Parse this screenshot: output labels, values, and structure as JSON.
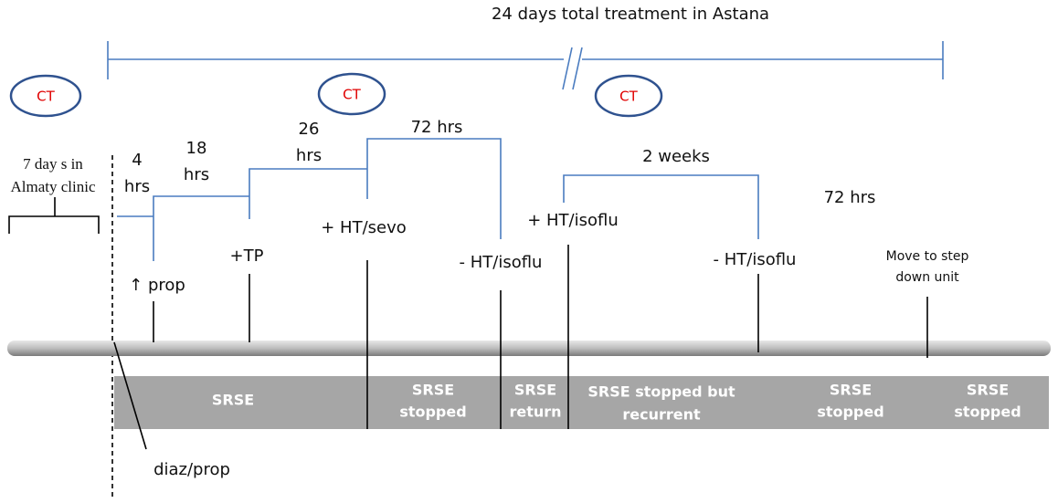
{
  "title": "24 days total treatment in Astana",
  "ct_markers": [
    "CT",
    "CT",
    "CT"
  ],
  "prior_stay": [
    "7 day s in",
    "Almaty clinic"
  ],
  "durations": [
    [
      "4",
      "hrs"
    ],
    [
      "18",
      "hrs"
    ],
    [
      "26",
      "hrs"
    ],
    [
      "72 hrs"
    ],
    [
      "2 weeks"
    ],
    [
      "72 hrs"
    ]
  ],
  "events": [
    [
      "↑ prop"
    ],
    [
      "+TP"
    ],
    [
      "+ HT/sevo"
    ],
    [
      "- HT/isoflu"
    ],
    [
      "+ HT/isoflu"
    ],
    [
      "- HT/isoflu"
    ],
    [
      "Move to step",
      "down unit"
    ],
    [
      "diaz/prop"
    ]
  ],
  "phases": [
    [
      "SRSE"
    ],
    [
      "SRSE",
      "stopped"
    ],
    [
      "SRSE",
      "return"
    ],
    [
      "SRSE stopped but",
      "recurrent"
    ],
    [
      "SRSE",
      "stopped"
    ],
    [
      "SRSE",
      "stopped"
    ]
  ]
}
